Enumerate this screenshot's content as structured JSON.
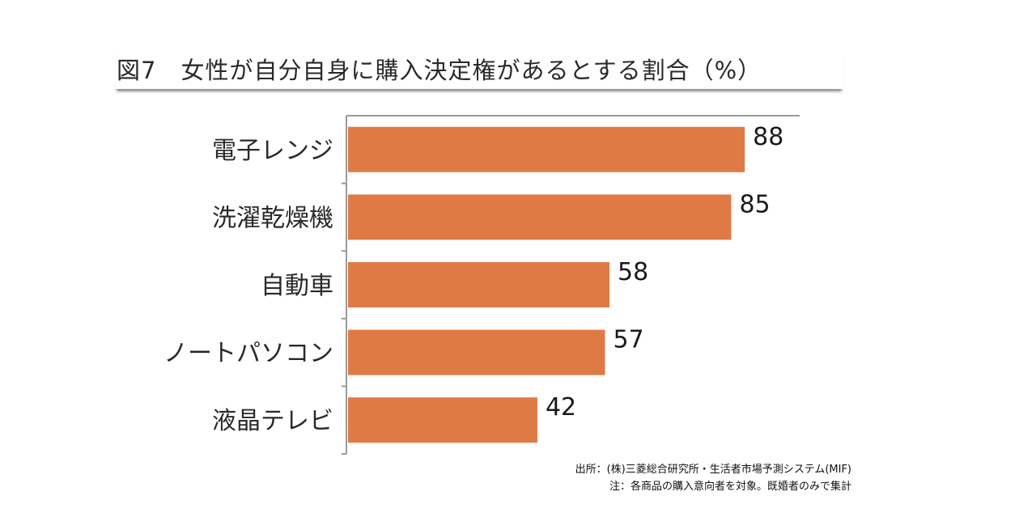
{
  "chart_data": {
    "type": "bar",
    "orientation": "horizontal",
    "title": "図7　女性が自分自身に購入決定権があるとする割合（%）",
    "categories": [
      "電子レンジ",
      "洗濯乾燥機",
      "自動車",
      "ノートパソコン",
      "液晶テレビ"
    ],
    "values": [
      88,
      85,
      58,
      57,
      42
    ],
    "xlim": [
      0,
      100
    ],
    "grid": false,
    "bar_color": "#E07A45",
    "data_labels": true
  },
  "footer": {
    "source": "出所：(株)三菱総合研究所・生活者市場予測システム(MIF)",
    "note": "注：各商品の購入意向者を対象。既婚者のみで集計"
  }
}
